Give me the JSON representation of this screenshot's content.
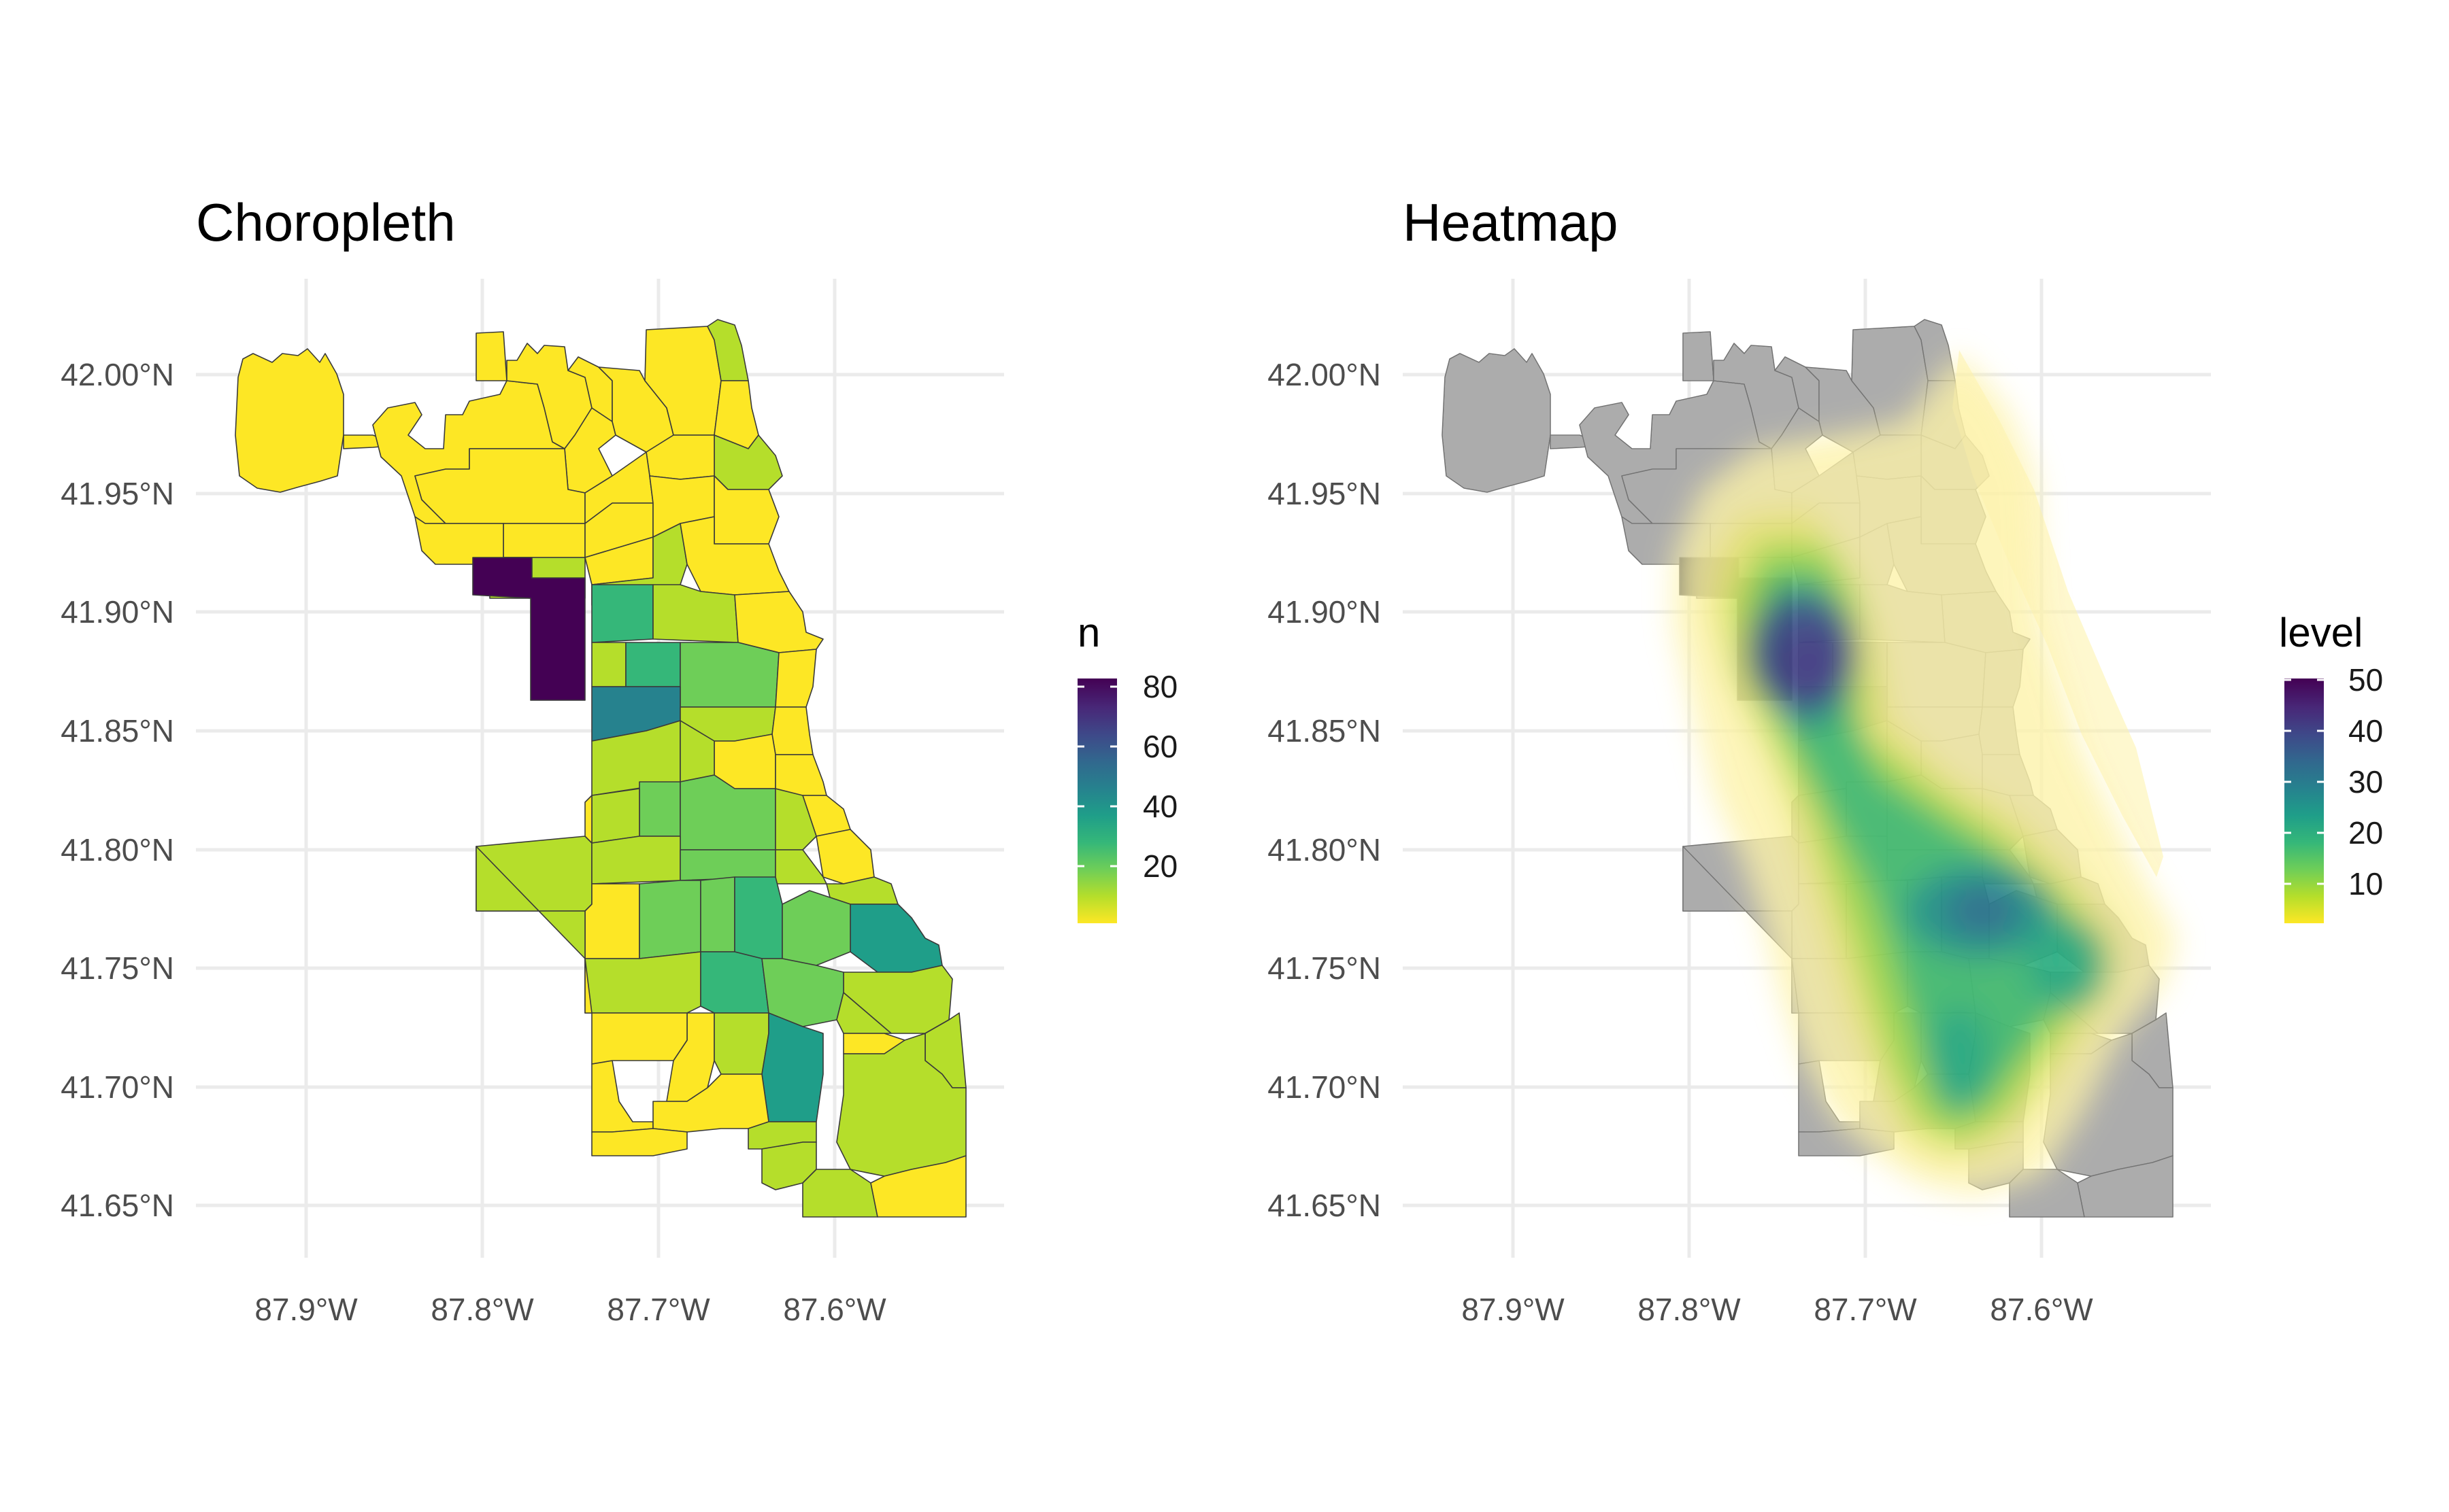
{
  "panels": [
    {
      "title": "Choropleth",
      "type": "choropleth",
      "x_ticks": [
        "87.9°W",
        "87.8°W",
        "87.7°W",
        "87.6°W"
      ],
      "y_ticks": [
        "42.00°N",
        "41.95°N",
        "41.90°N",
        "41.85°N",
        "41.80°N",
        "41.75°N",
        "41.70°N",
        "41.65°N"
      ],
      "legend": {
        "title": "n",
        "labels": [
          "80",
          "60",
          "40",
          "20"
        ],
        "range": [
          1,
          84
        ]
      }
    },
    {
      "title": "Heatmap",
      "type": "density",
      "x_ticks": [
        "87.9°W",
        "87.8°W",
        "87.7°W",
        "87.6°W"
      ],
      "y_ticks": [
        "42.00°N",
        "41.95°N",
        "41.90°N",
        "41.85°N",
        "41.80°N",
        "41.75°N",
        "41.70°N",
        "41.65°N"
      ],
      "legend": {
        "title": "level",
        "labels": [
          "50",
          "40",
          "30",
          "20",
          "10"
        ],
        "range": [
          1,
          52
        ]
      }
    }
  ],
  "colors": {
    "viridis": [
      "#fde725",
      "#b5de2b",
      "#6ece58",
      "#35b779",
      "#1f9e89",
      "#26828e",
      "#31688e",
      "#3e4989",
      "#482878",
      "#440154"
    ],
    "base_fill": "#e6e6e6",
    "border": "#3a3a3a",
    "grid": "#ebebeb"
  },
  "chart_data": [
    {
      "type": "heatmap",
      "title": "Choropleth",
      "xlim": [
        -87.94,
        -87.52
      ],
      "ylim": [
        41.64,
        42.02
      ],
      "legend_title": "n",
      "areas": [
        {
          "lon": -87.85,
          "lat": 41.98,
          "n": 3
        },
        {
          "lon": -87.73,
          "lat": 41.99,
          "n": 3
        },
        {
          "lon": -87.66,
          "lat": 41.99,
          "n": 5
        },
        {
          "lon": -87.76,
          "lat": 41.95,
          "n": 4
        },
        {
          "lon": -87.69,
          "lat": 41.94,
          "n": 4
        },
        {
          "lon": -87.65,
          "lat": 41.95,
          "n": 8
        },
        {
          "lon": -87.76,
          "lat": 41.92,
          "n": 10
        },
        {
          "lon": -87.78,
          "lat": 41.89,
          "n": 84
        },
        {
          "lon": -87.71,
          "lat": 41.89,
          "n": 35
        },
        {
          "lon": -87.67,
          "lat": 41.88,
          "n": 13
        },
        {
          "lon": -87.71,
          "lat": 41.86,
          "n": 52
        },
        {
          "lon": -87.66,
          "lat": 41.85,
          "n": 9
        },
        {
          "lon": -87.7,
          "lat": 41.82,
          "n": 11
        },
        {
          "lon": -87.68,
          "lat": 41.8,
          "n": 26
        },
        {
          "lon": -87.64,
          "lat": 41.81,
          "n": 23
        },
        {
          "lon": -87.6,
          "lat": 41.8,
          "n": 6
        },
        {
          "lon": -87.69,
          "lat": 41.77,
          "n": 27
        },
        {
          "lon": -87.65,
          "lat": 41.77,
          "n": 21
        },
        {
          "lon": -87.62,
          "lat": 41.76,
          "n": 30
        },
        {
          "lon": -87.58,
          "lat": 41.76,
          "n": 38
        },
        {
          "lon": -87.66,
          "lat": 41.74,
          "n": 34
        },
        {
          "lon": -87.61,
          "lat": 41.72,
          "n": 45
        },
        {
          "lon": -87.66,
          "lat": 41.7,
          "n": 16
        },
        {
          "lon": -87.57,
          "lat": 41.69,
          "n": 8
        },
        {
          "lon": -87.6,
          "lat": 41.66,
          "n": 4
        }
      ]
    },
    {
      "type": "heatmap",
      "title": "Heatmap",
      "xlim": [
        -87.94,
        -87.52
      ],
      "ylim": [
        41.64,
        42.02
      ],
      "legend_title": "level",
      "density_peaks": [
        {
          "lon": -87.735,
          "lat": 41.882,
          "level": 52
        },
        {
          "lon": -87.63,
          "lat": 41.775,
          "level": 38
        },
        {
          "lon": -87.58,
          "lat": 41.758,
          "level": 24
        },
        {
          "lon": -87.64,
          "lat": 41.7,
          "level": 22
        }
      ]
    }
  ]
}
